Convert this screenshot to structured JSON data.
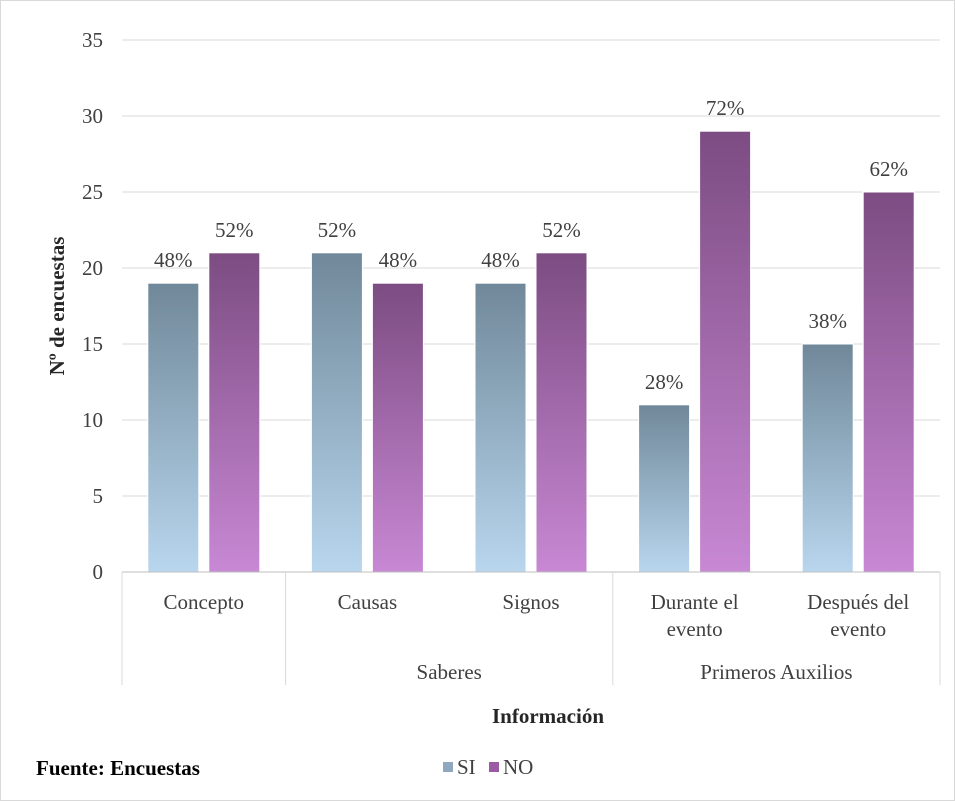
{
  "chart_data": {
    "type": "bar",
    "categories": [
      "Concepto",
      "Causas",
      "Signos",
      "Durante el evento",
      "Después del evento"
    ],
    "groups": [
      {
        "label": "",
        "categories": [
          "Concepto"
        ]
      },
      {
        "label": "Saberes",
        "categories": [
          "Causas",
          "Signos"
        ]
      },
      {
        "label": "Primeros Auxilios",
        "categories": [
          "Durante el evento",
          "Después del evento"
        ]
      }
    ],
    "series": [
      {
        "name": "SI",
        "values": [
          19,
          21,
          19,
          11,
          15
        ],
        "labels": [
          "48%",
          "52%",
          "48%",
          "28%",
          "38%"
        ],
        "color": "#708899",
        "color_light": "#b8d6ee"
      },
      {
        "name": "NO",
        "values": [
          21,
          19,
          21,
          29,
          25
        ],
        "labels": [
          "52%",
          "48%",
          "52%",
          "72%",
          "62%"
        ],
        "color": "#7c4c82",
        "color_light": "#c888d4"
      }
    ],
    "xlabel": "Información",
    "ylabel": "Nº de encuestas",
    "ylim": [
      0,
      35
    ],
    "yticks": [
      0,
      5,
      10,
      15,
      20,
      25,
      30,
      35
    ],
    "grid": true,
    "legend": "bottom-center"
  },
  "source": "Fuente: Encuestas"
}
